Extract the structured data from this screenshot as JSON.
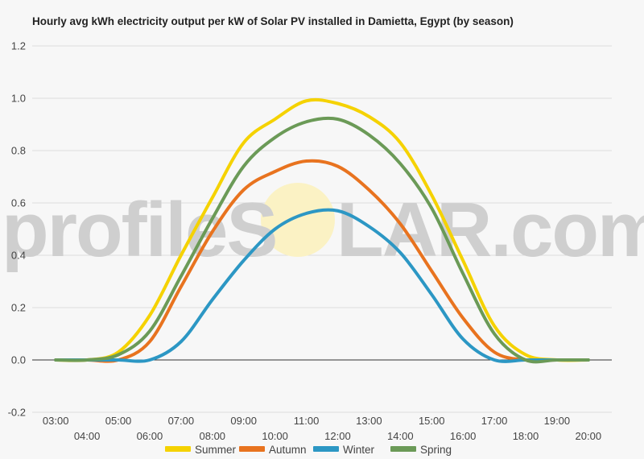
{
  "chart_data": {
    "type": "line",
    "title": "Hourly avg kWh electricity output per kW of Solar PV installed in Damietta, Egypt (by season)",
    "xlabel": "",
    "ylabel": "",
    "ylim": [
      -0.2,
      1.2
    ],
    "yticks": [
      "1.2",
      "1.0",
      "0.8",
      "0.6",
      "0.4",
      "0.2",
      "0.0",
      "-0.2"
    ],
    "yticks_values": [
      1.2,
      1.0,
      0.8,
      0.6,
      0.4,
      0.2,
      0.0,
      -0.2
    ],
    "xlim": [
      2.25,
      20.75
    ],
    "x": [
      3,
      4,
      5,
      6,
      7,
      8,
      9,
      10,
      11,
      12,
      13,
      14,
      15,
      16,
      17,
      18,
      19,
      20
    ],
    "x_labels": [
      "03:00",
      "04:00",
      "05:00",
      "06:00",
      "07:00",
      "08:00",
      "09:00",
      "10:00",
      "11:00",
      "12:00",
      "13:00",
      "14:00",
      "15:00",
      "16:00",
      "17:00",
      "18:00",
      "19:00",
      "20:00"
    ],
    "grid": true,
    "legend_position": "bottom",
    "series": [
      {
        "name": "Summer",
        "color": "#f5d200",
        "values": [
          0.0,
          0.0,
          0.03,
          0.17,
          0.4,
          0.62,
          0.83,
          0.92,
          0.99,
          0.98,
          0.93,
          0.83,
          0.63,
          0.38,
          0.13,
          0.02,
          0.0,
          0.0
        ]
      },
      {
        "name": "Autumn",
        "color": "#e8731f",
        "values": [
          0.0,
          0.0,
          0.0,
          0.07,
          0.28,
          0.49,
          0.65,
          0.72,
          0.76,
          0.74,
          0.65,
          0.52,
          0.34,
          0.16,
          0.03,
          0.0,
          0.0,
          0.0
        ]
      },
      {
        "name": "Winter",
        "color": "#2c97c4",
        "values": [
          0.0,
          0.0,
          0.0,
          0.0,
          0.07,
          0.23,
          0.38,
          0.5,
          0.56,
          0.57,
          0.51,
          0.41,
          0.25,
          0.08,
          0.0,
          0.0,
          0.0,
          0.0
        ]
      },
      {
        "name": "Spring",
        "color": "#6b9a57",
        "values": [
          0.0,
          0.0,
          0.02,
          0.11,
          0.32,
          0.54,
          0.74,
          0.85,
          0.91,
          0.92,
          0.86,
          0.75,
          0.58,
          0.33,
          0.1,
          0.0,
          0.0,
          0.0
        ]
      }
    ]
  },
  "watermark": {
    "text_left": "profileS",
    "text_right": "LAR.com"
  },
  "colors": {
    "grid": "#dcdcdc",
    "zero_line": "#333333",
    "background": "#f7f7f7",
    "sun": "#fbf2c4"
  }
}
